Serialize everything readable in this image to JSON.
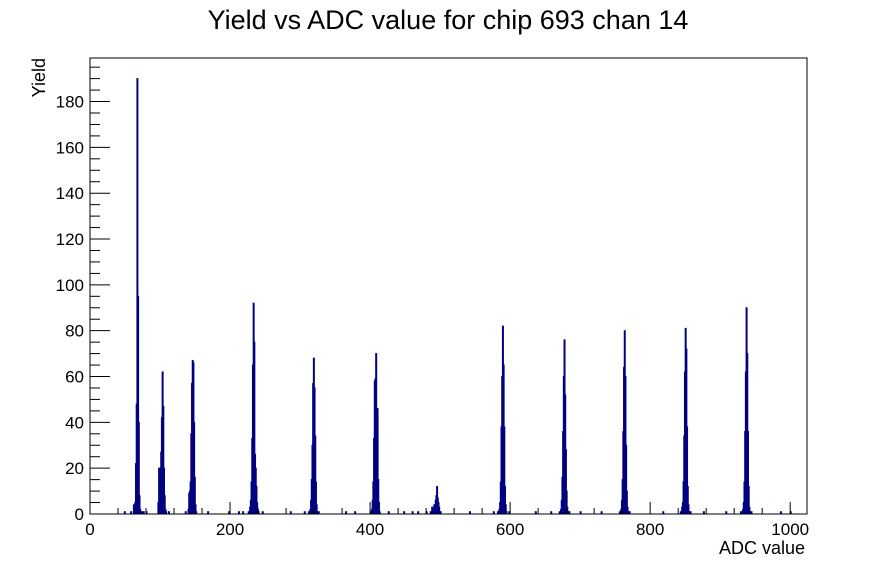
{
  "chart_data": {
    "type": "bar",
    "title": "Yield vs ADC value for chip 693 chan 14",
    "xlabel": "ADC value",
    "ylabel": "Yield",
    "xlim": [
      0,
      1024
    ],
    "ylim": [
      0,
      199
    ],
    "x_ticks": [
      "0",
      "200",
      "400",
      "600",
      "800",
      "1000"
    ],
    "y_ticks": [
      "0",
      "20",
      "40",
      "60",
      "80",
      "100",
      "120",
      "140",
      "160",
      "180"
    ],
    "bar_color": "#000080",
    "grid": false,
    "legend": "none",
    "bins": [
      [
        49,
        1
      ],
      [
        58,
        1
      ],
      [
        62,
        4
      ],
      [
        63,
        2
      ],
      [
        64,
        5
      ],
      [
        65,
        22
      ],
      [
        66,
        48
      ],
      [
        67,
        190
      ],
      [
        68,
        95
      ],
      [
        69,
        40
      ],
      [
        70,
        8
      ],
      [
        71,
        2
      ],
      [
        72,
        1
      ],
      [
        74,
        1
      ],
      [
        76,
        1
      ],
      [
        80,
        1
      ],
      [
        97,
        5
      ],
      [
        98,
        20
      ],
      [
        99,
        14
      ],
      [
        100,
        20
      ],
      [
        101,
        27
      ],
      [
        102,
        42
      ],
      [
        103,
        62
      ],
      [
        104,
        47
      ],
      [
        105,
        20
      ],
      [
        106,
        8
      ],
      [
        107,
        2
      ],
      [
        108,
        1
      ],
      [
        112,
        1
      ],
      [
        136,
        1
      ],
      [
        140,
        2
      ],
      [
        141,
        9
      ],
      [
        142,
        10
      ],
      [
        143,
        14
      ],
      [
        144,
        35
      ],
      [
        145,
        57
      ],
      [
        146,
        67
      ],
      [
        147,
        66
      ],
      [
        148,
        40
      ],
      [
        149,
        16
      ],
      [
        150,
        4
      ],
      [
        151,
        1
      ],
      [
        168,
        1
      ],
      [
        198,
        1
      ],
      [
        212,
        1
      ],
      [
        218,
        1
      ],
      [
        226,
        1
      ],
      [
        228,
        3
      ],
      [
        229,
        6
      ],
      [
        230,
        14
      ],
      [
        231,
        33
      ],
      [
        232,
        65
      ],
      [
        233,
        92
      ],
      [
        234,
        75
      ],
      [
        235,
        26
      ],
      [
        236,
        20
      ],
      [
        237,
        12
      ],
      [
        238,
        5
      ],
      [
        239,
        2
      ],
      [
        240,
        1
      ],
      [
        246,
        1
      ],
      [
        286,
        1
      ],
      [
        306,
        1
      ],
      [
        312,
        1
      ],
      [
        314,
        2
      ],
      [
        315,
        6
      ],
      [
        316,
        15
      ],
      [
        317,
        30
      ],
      [
        318,
        57
      ],
      [
        319,
        68
      ],
      [
        320,
        55
      ],
      [
        321,
        34
      ],
      [
        322,
        14
      ],
      [
        323,
        4
      ],
      [
        324,
        1
      ],
      [
        326,
        1
      ],
      [
        365,
        1
      ],
      [
        378,
        1
      ],
      [
        400,
        1
      ],
      [
        402,
        2
      ],
      [
        403,
        6
      ],
      [
        404,
        14
      ],
      [
        405,
        33
      ],
      [
        406,
        58
      ],
      [
        407,
        59
      ],
      [
        408,
        70
      ],
      [
        409,
        46
      ],
      [
        410,
        46
      ],
      [
        411,
        15
      ],
      [
        412,
        5
      ],
      [
        413,
        1
      ],
      [
        426,
        1
      ],
      [
        448,
        1
      ],
      [
        460,
        1
      ],
      [
        468,
        1
      ],
      [
        480,
        1
      ],
      [
        486,
        1
      ],
      [
        488,
        3
      ],
      [
        490,
        2
      ],
      [
        491,
        4
      ],
      [
        492,
        3
      ],
      [
        493,
        6
      ],
      [
        494,
        8
      ],
      [
        495,
        12
      ],
      [
        496,
        7
      ],
      [
        497,
        5
      ],
      [
        498,
        3
      ],
      [
        499,
        1
      ],
      [
        500,
        1
      ],
      [
        542,
        1
      ],
      [
        576,
        1
      ],
      [
        582,
        1
      ],
      [
        584,
        2
      ],
      [
        585,
        5
      ],
      [
        586,
        14
      ],
      [
        587,
        38
      ],
      [
        588,
        60
      ],
      [
        589,
        82
      ],
      [
        590,
        65
      ],
      [
        591,
        38
      ],
      [
        592,
        12
      ],
      [
        593,
        4
      ],
      [
        594,
        1
      ],
      [
        598,
        1
      ],
      [
        636,
        1
      ],
      [
        658,
        1
      ],
      [
        670,
        1
      ],
      [
        672,
        2
      ],
      [
        673,
        6
      ],
      [
        674,
        16
      ],
      [
        675,
        36
      ],
      [
        676,
        60
      ],
      [
        677,
        76
      ],
      [
        678,
        52
      ],
      [
        679,
        28
      ],
      [
        680,
        10
      ],
      [
        681,
        3
      ],
      [
        682,
        1
      ],
      [
        684,
        1
      ],
      [
        700,
        1
      ],
      [
        730,
        1
      ],
      [
        756,
        1
      ],
      [
        758,
        2
      ],
      [
        759,
        6
      ],
      [
        760,
        15
      ],
      [
        761,
        36
      ],
      [
        762,
        64
      ],
      [
        763,
        80
      ],
      [
        764,
        60
      ],
      [
        765,
        30
      ],
      [
        766,
        10
      ],
      [
        767,
        3
      ],
      [
        768,
        1
      ],
      [
        770,
        1
      ],
      [
        818,
        1
      ],
      [
        843,
        1
      ],
      [
        845,
        3
      ],
      [
        846,
        5
      ],
      [
        847,
        14
      ],
      [
        848,
        34
      ],
      [
        849,
        62
      ],
      [
        850,
        81
      ],
      [
        851,
        72
      ],
      [
        852,
        38
      ],
      [
        853,
        12
      ],
      [
        854,
        4
      ],
      [
        855,
        1
      ],
      [
        857,
        1
      ],
      [
        876,
        1
      ],
      [
        908,
        1
      ],
      [
        929,
        1
      ],
      [
        932,
        2
      ],
      [
        933,
        5
      ],
      [
        934,
        14
      ],
      [
        935,
        36
      ],
      [
        936,
        62
      ],
      [
        937,
        90
      ],
      [
        938,
        70
      ],
      [
        939,
        36
      ],
      [
        940,
        12
      ],
      [
        941,
        3
      ],
      [
        942,
        1
      ],
      [
        944,
        1
      ],
      [
        986,
        1
      ],
      [
        1000,
        1
      ]
    ]
  }
}
